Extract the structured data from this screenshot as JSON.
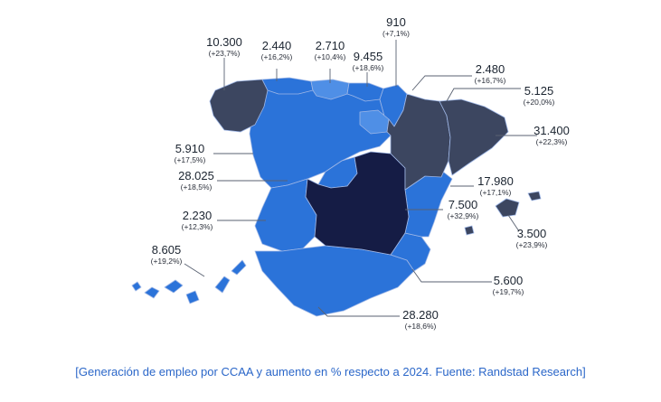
{
  "colors": {
    "dark_slate": "#3c4660",
    "navy": "#151c45",
    "blue": "#2b73d9",
    "light_blue": "#4f8fe6",
    "caption": "#2b67c9"
  },
  "labels": {
    "galicia": {
      "value": "10.300",
      "pct": "(+23,7%)"
    },
    "asturias": {
      "value": "2.440",
      "pct": "(+16,2%)"
    },
    "cantabria": {
      "value": "2.710",
      "pct": "(+10,4%)"
    },
    "pais_vasco": {
      "value": "9.455",
      "pct": "(+18,6%)"
    },
    "navarra": {
      "value": "910",
      "pct": "(+7,1%)"
    },
    "la_rioja": {
      "value": "2.480",
      "pct": "(+16,7%)"
    },
    "aragon": {
      "value": "5.125",
      "pct": "(+20,0%)"
    },
    "cataluna": {
      "value": "31.400",
      "pct": "(+22,3%)"
    },
    "castilla_leon": {
      "value": "5.910",
      "pct": "(+17,5%)"
    },
    "madrid": {
      "value": "28.025",
      "pct": "(+18,5%)"
    },
    "extremadura": {
      "value": "2.230",
      "pct": "(+12,3%)"
    },
    "canarias": {
      "value": "8.605",
      "pct": "(+19,2%)"
    },
    "valencia": {
      "value": "17.980",
      "pct": "(+17,1%)"
    },
    "castilla_la_mancha": {
      "value": "7.500",
      "pct": "(+32,9%)"
    },
    "baleares": {
      "value": "3.500",
      "pct": "(+23,9%)"
    },
    "murcia": {
      "value": "5.600",
      "pct": "(+19,7%)"
    },
    "andalucia": {
      "value": "28.280",
      "pct": "(+18,6%)"
    }
  },
  "caption": "[Generación de empleo por CCAA y aumento en % respecto a 2024. Fuente: Randstad Research]"
}
